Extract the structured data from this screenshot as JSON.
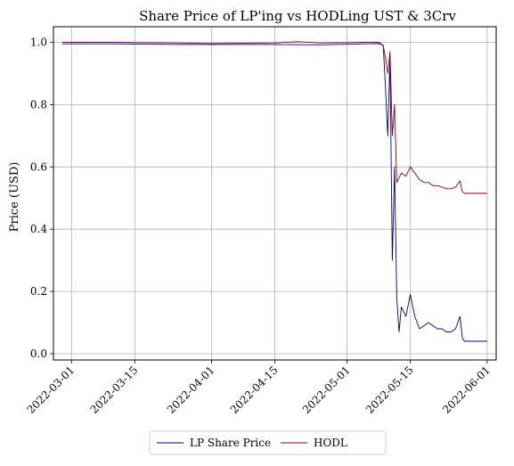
{
  "chart_data": {
    "type": "line",
    "title": "Share Price of LP'ing vs HODLing UST & 3Crv",
    "xlabel": "",
    "ylabel": "Price (USD)",
    "xlim": [
      "2022-02-25",
      "2022-06-03"
    ],
    "ylim": [
      -0.02,
      1.05
    ],
    "grid": true,
    "legend_position": "bottom-center",
    "x_ticks": [
      "2022-03-01",
      "2022-03-15",
      "2022-04-01",
      "2022-04-15",
      "2022-05-01",
      "2022-05-15",
      "2022-06-01"
    ],
    "y_ticks": [
      0.0,
      0.2,
      0.4,
      0.6,
      0.8,
      1.0
    ],
    "y_tick_labels": [
      "0.0",
      "0.2",
      "0.4",
      "0.6",
      "0.8",
      "1.0"
    ],
    "series": [
      {
        "name": "LP Share Price",
        "color": "#00008b",
        "x": [
          "2022-02-27",
          "2022-03-10",
          "2022-03-24",
          "2022-04-01",
          "2022-04-15",
          "2022-04-25",
          "2022-05-05",
          "2022-05-08",
          "2022-05-09",
          "2022-05-09T12",
          "2022-05-10",
          "2022-05-10T12",
          "2022-05-11",
          "2022-05-11T12",
          "2022-05-12",
          "2022-05-12T12",
          "2022-05-13",
          "2022-05-14",
          "2022-05-15",
          "2022-05-16",
          "2022-05-17",
          "2022-05-18",
          "2022-05-19",
          "2022-05-20",
          "2022-05-21",
          "2022-05-22",
          "2022-05-23",
          "2022-05-24",
          "2022-05-25",
          "2022-05-26",
          "2022-05-26T12",
          "2022-05-27",
          "2022-06-01"
        ],
        "y": [
          0.995,
          0.995,
          0.993,
          0.993,
          0.993,
          0.992,
          0.995,
          0.996,
          0.99,
          0.85,
          0.7,
          0.95,
          0.3,
          0.6,
          0.18,
          0.07,
          0.15,
          0.12,
          0.19,
          0.12,
          0.08,
          0.09,
          0.1,
          0.09,
          0.08,
          0.08,
          0.07,
          0.07,
          0.08,
          0.12,
          0.05,
          0.04,
          0.04
        ]
      },
      {
        "name": "HODL",
        "color": "#8b0000",
        "x": [
          "2022-02-27",
          "2022-03-10",
          "2022-03-24",
          "2022-04-01",
          "2022-04-15",
          "2022-04-20",
          "2022-04-25",
          "2022-05-05",
          "2022-05-08",
          "2022-05-09",
          "2022-05-09T12",
          "2022-05-10",
          "2022-05-10T12",
          "2022-05-11",
          "2022-05-11T12",
          "2022-05-12",
          "2022-05-13",
          "2022-05-14",
          "2022-05-15",
          "2022-05-16",
          "2022-05-17",
          "2022-05-18",
          "2022-05-19",
          "2022-05-20",
          "2022-05-21",
          "2022-05-22",
          "2022-05-23",
          "2022-05-24",
          "2022-05-25",
          "2022-05-26",
          "2022-05-26T12",
          "2022-05-27",
          "2022-06-01"
        ],
        "y": [
          1.0,
          1.0,
          0.998,
          0.996,
          0.998,
          1.002,
          0.998,
          1.0,
          1.0,
          0.99,
          0.95,
          0.9,
          0.97,
          0.7,
          0.8,
          0.55,
          0.58,
          0.57,
          0.6,
          0.58,
          0.56,
          0.55,
          0.55,
          0.54,
          0.54,
          0.535,
          0.53,
          0.53,
          0.535,
          0.555,
          0.52,
          0.515,
          0.515
        ]
      }
    ]
  }
}
